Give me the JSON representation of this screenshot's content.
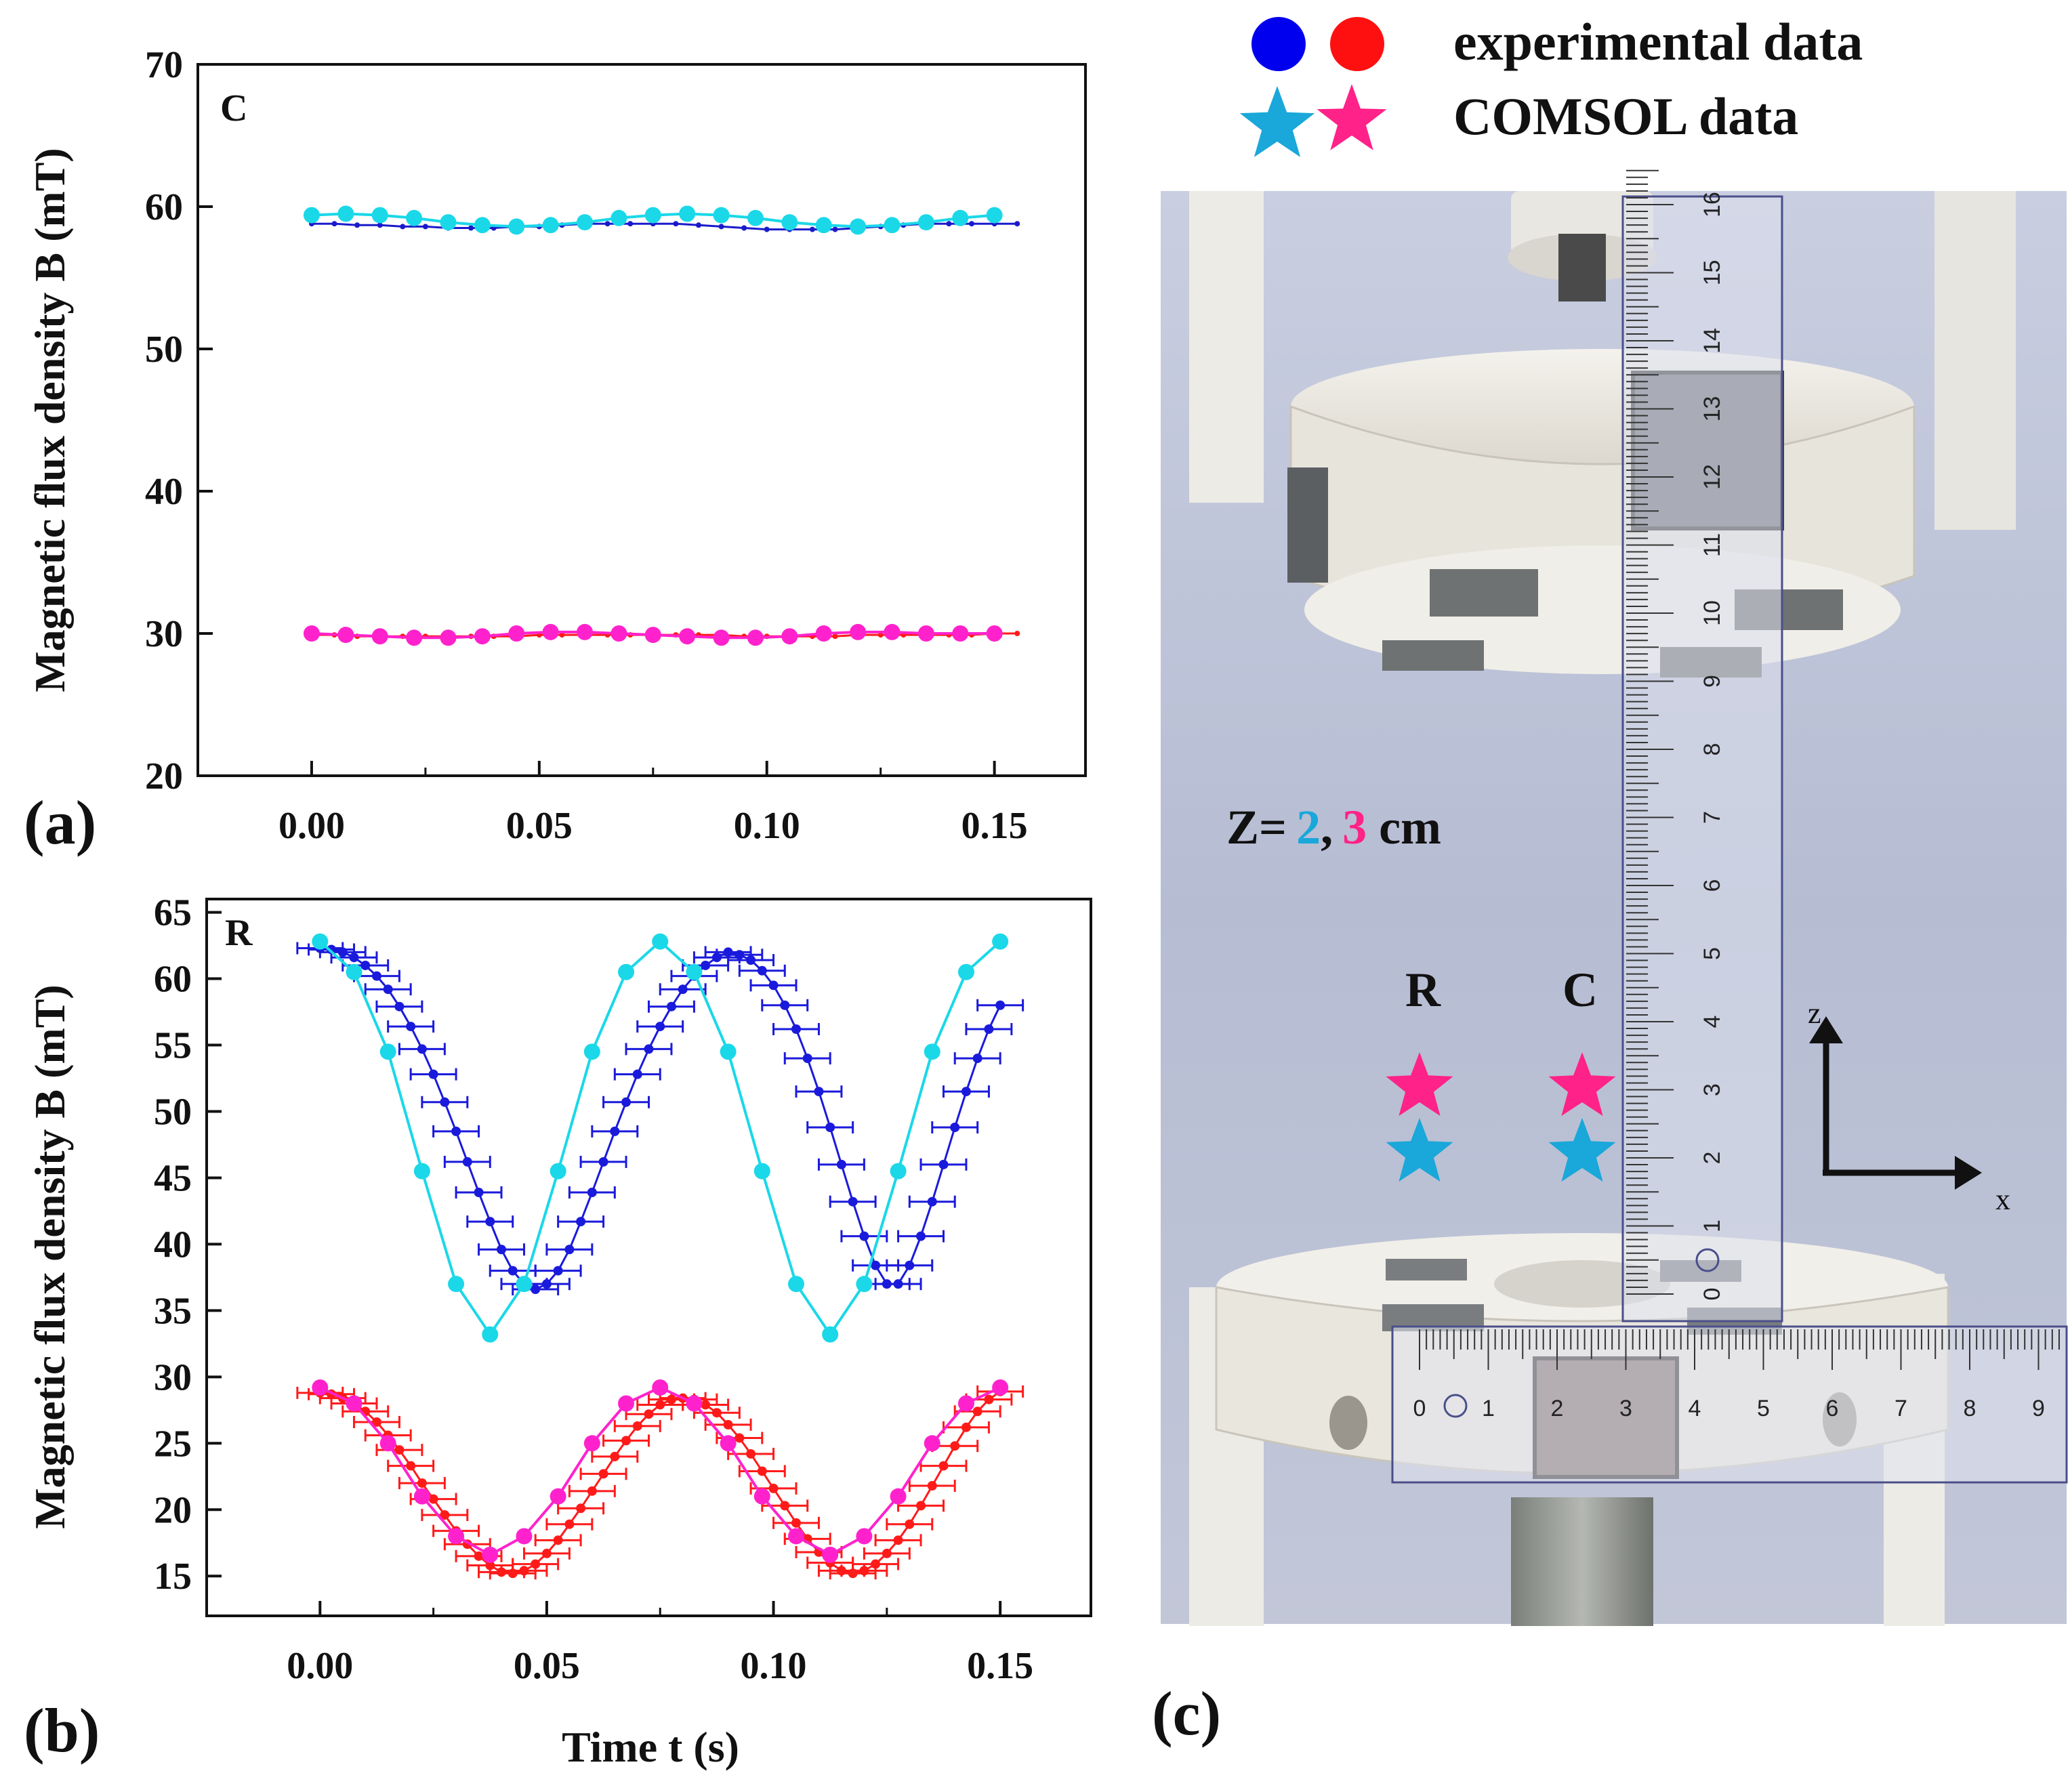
{
  "figure": {
    "panel_labels": {
      "a": "(a)",
      "b": "(b)",
      "c": "(c)"
    },
    "legend": {
      "experimental": "experimental data",
      "comsol": "COMSOL data",
      "colors": {
        "blue": "#0a0ae0",
        "red": "#ff1a1a",
        "cyan": "#1aa7d9",
        "magenta": "#ff2288"
      }
    },
    "photo": {
      "z_label": {
        "prefix": "Z=",
        "v1": "2",
        "sep": ",",
        "v2": "3",
        "unit": "cm"
      },
      "pos_R": "R",
      "pos_C": "C",
      "axis_z": "z",
      "axis_x": "x",
      "vertical_ruler": [
        "0",
        "1",
        "2",
        "3",
        "4",
        "5",
        "6",
        "7",
        "8",
        "9",
        "10",
        "11",
        "12",
        "13",
        "14",
        "15",
        "16"
      ],
      "horizontal_ruler": [
        "0",
        "1",
        "2",
        "3",
        "4",
        "5",
        "6",
        "7",
        "8",
        "9"
      ],
      "background_color": "#b8bfd4"
    }
  },
  "chart_data": [
    {
      "type": "line",
      "panel": "(a)",
      "corner_label": "C",
      "xlabel": "",
      "ylabel": "Magnetic flux density B (mT)",
      "xlim": [
        -0.025,
        0.17
      ],
      "ylim": [
        20,
        70
      ],
      "xticks": [
        "0.00",
        "0.05",
        "0.10",
        "0.15"
      ],
      "xtick_values": [
        0,
        0.05,
        0.1,
        0.15
      ],
      "yticks": [
        "20",
        "30",
        "40",
        "50",
        "60",
        "70"
      ],
      "ytick_values": [
        20,
        30,
        40,
        50,
        60,
        70
      ],
      "series": [
        {
          "name": "experimental z=2 cm",
          "color": "#1a1acc",
          "marker": "small-dot",
          "x": [
            0,
            0.005,
            0.01,
            0.015,
            0.02,
            0.025,
            0.03,
            0.035,
            0.04,
            0.045,
            0.05,
            0.055,
            0.06,
            0.065,
            0.07,
            0.075,
            0.08,
            0.085,
            0.09,
            0.095,
            0.1,
            0.105,
            0.11,
            0.115,
            0.12,
            0.125,
            0.13,
            0.135,
            0.14,
            0.145,
            0.15,
            0.155
          ],
          "y": [
            58.8,
            58.8,
            58.7,
            58.7,
            58.6,
            58.6,
            58.5,
            58.5,
            58.5,
            58.6,
            58.6,
            58.7,
            58.8,
            58.8,
            58.8,
            58.8,
            58.8,
            58.7,
            58.6,
            58.5,
            58.4,
            58.4,
            58.4,
            58.4,
            58.5,
            58.6,
            58.7,
            58.8,
            58.8,
            58.8,
            58.8,
            58.8
          ]
        },
        {
          "name": "COMSOL z=2 cm",
          "color": "#1ad8e8",
          "marker": "big-dot",
          "x": [
            0,
            0.0075,
            0.015,
            0.0225,
            0.03,
            0.0375,
            0.045,
            0.0525,
            0.06,
            0.0675,
            0.075,
            0.0825,
            0.09,
            0.0975,
            0.105,
            0.1125,
            0.12,
            0.1275,
            0.135,
            0.1425,
            0.15
          ],
          "y": [
            59.4,
            59.5,
            59.4,
            59.2,
            58.9,
            58.7,
            58.6,
            58.7,
            58.9,
            59.2,
            59.4,
            59.5,
            59.4,
            59.2,
            58.9,
            58.7,
            58.6,
            58.7,
            58.9,
            59.2,
            59.4
          ]
        },
        {
          "name": "experimental z=3 cm",
          "color": "#ff1a1a",
          "marker": "small-dot",
          "x": [
            0,
            0.005,
            0.01,
            0.015,
            0.02,
            0.025,
            0.03,
            0.035,
            0.04,
            0.045,
            0.05,
            0.055,
            0.06,
            0.065,
            0.07,
            0.075,
            0.08,
            0.085,
            0.09,
            0.095,
            0.1,
            0.105,
            0.11,
            0.115,
            0.12,
            0.125,
            0.13,
            0.135,
            0.14,
            0.145,
            0.15,
            0.155
          ],
          "y": [
            29.9,
            29.9,
            29.8,
            29.8,
            29.8,
            29.8,
            29.8,
            29.8,
            29.8,
            29.8,
            29.9,
            29.9,
            29.9,
            29.9,
            29.9,
            29.9,
            29.9,
            29.9,
            29.9,
            29.8,
            29.8,
            29.8,
            29.8,
            29.8,
            29.9,
            29.9,
            29.9,
            29.9,
            29.9,
            29.9,
            30.0,
            30.0
          ]
        },
        {
          "name": "COMSOL z=3 cm",
          "color": "#ff22cc",
          "marker": "big-dot",
          "x": [
            0,
            0.0075,
            0.015,
            0.0225,
            0.03,
            0.0375,
            0.045,
            0.0525,
            0.06,
            0.0675,
            0.075,
            0.0825,
            0.09,
            0.0975,
            0.105,
            0.1125,
            0.12,
            0.1275,
            0.135,
            0.1425,
            0.15
          ],
          "y": [
            30.0,
            29.9,
            29.8,
            29.7,
            29.7,
            29.8,
            30.0,
            30.1,
            30.1,
            30.0,
            29.9,
            29.8,
            29.7,
            29.7,
            29.8,
            30.0,
            30.1,
            30.1,
            30.0,
            30.0,
            30.0
          ]
        }
      ]
    },
    {
      "type": "line",
      "panel": "(b)",
      "corner_label": "R",
      "xlabel": "Time t (s)",
      "ylabel": "Magnetic flux density B (mT)",
      "xlim": [
        -0.025,
        0.17
      ],
      "ylim": [
        12,
        66
      ],
      "xticks": [
        "0.00",
        "0.05",
        "0.10",
        "0.15"
      ],
      "xtick_values": [
        0,
        0.05,
        0.1,
        0.15
      ],
      "yticks": [
        "15",
        "20",
        "25",
        "30",
        "35",
        "40",
        "45",
        "50",
        "55",
        "60",
        "65"
      ],
      "ytick_values": [
        15,
        20,
        25,
        30,
        35,
        40,
        45,
        50,
        55,
        60,
        65
      ],
      "series": [
        {
          "name": "experimental z=2 cm",
          "color": "#1a1adc",
          "marker": "dot-errorbar",
          "xerr": 0.005,
          "x": [
            0,
            0.0025,
            0.005,
            0.0075,
            0.01,
            0.0125,
            0.015,
            0.0175,
            0.02,
            0.0225,
            0.025,
            0.0275,
            0.03,
            0.0325,
            0.035,
            0.0375,
            0.04,
            0.0425,
            0.045,
            0.0475,
            0.05,
            0.0525,
            0.055,
            0.0575,
            0.06,
            0.0625,
            0.065,
            0.0675,
            0.07,
            0.0725,
            0.075,
            0.0775,
            0.08,
            0.0825,
            0.085,
            0.0875,
            0.09,
            0.0925,
            0.095,
            0.0975,
            0.1,
            0.1025,
            0.105,
            0.1075,
            0.11,
            0.1125,
            0.115,
            0.1175,
            0.12,
            0.1225,
            0.125,
            0.1275,
            0.13,
            0.1325,
            0.135,
            0.1375,
            0.14,
            0.1425,
            0.145,
            0.1475,
            0.15
          ],
          "y": [
            62.3,
            62.2,
            62.0,
            61.6,
            61.0,
            60.2,
            59.2,
            57.9,
            56.4,
            54.7,
            52.8,
            50.7,
            48.5,
            46.2,
            43.9,
            41.7,
            39.6,
            38.0,
            37.0,
            36.6,
            37.0,
            38.0,
            39.6,
            41.7,
            43.9,
            46.2,
            48.5,
            50.7,
            52.8,
            54.7,
            56.4,
            57.9,
            59.2,
            60.2,
            61.0,
            61.6,
            62.0,
            61.8,
            61.4,
            60.6,
            59.5,
            58.0,
            56.2,
            54.0,
            51.5,
            48.8,
            46.0,
            43.2,
            40.6,
            38.4,
            37.0,
            37.0,
            38.4,
            40.6,
            43.2,
            46.0,
            48.8,
            51.5,
            54.0,
            56.2,
            58.0
          ]
        },
        {
          "name": "COMSOL z=2 cm",
          "color": "#1ad8e8",
          "marker": "big-dot",
          "x": [
            0,
            0.0075,
            0.015,
            0.0225,
            0.03,
            0.0375,
            0.045,
            0.0525,
            0.06,
            0.0675,
            0.075,
            0.0825,
            0.09,
            0.0975,
            0.105,
            0.1125,
            0.12,
            0.1275,
            0.135,
            0.1425,
            0.15
          ],
          "y": [
            62.8,
            60.5,
            54.5,
            45.5,
            37.0,
            33.2,
            37.0,
            45.5,
            54.5,
            60.5,
            62.8,
            60.5,
            54.5,
            45.5,
            37.0,
            33.2,
            37.0,
            45.5,
            54.5,
            60.5,
            62.8
          ]
        },
        {
          "name": "experimental z=3 cm",
          "color": "#ff1a1a",
          "marker": "dot-errorbar",
          "xerr": 0.005,
          "x": [
            0,
            0.0025,
            0.005,
            0.0075,
            0.01,
            0.0125,
            0.015,
            0.0175,
            0.02,
            0.0225,
            0.025,
            0.0275,
            0.03,
            0.0325,
            0.035,
            0.0375,
            0.04,
            0.0425,
            0.045,
            0.0475,
            0.05,
            0.0525,
            0.055,
            0.0575,
            0.06,
            0.0625,
            0.065,
            0.0675,
            0.07,
            0.0725,
            0.075,
            0.0775,
            0.08,
            0.0825,
            0.085,
            0.0875,
            0.09,
            0.0925,
            0.095,
            0.0975,
            0.1,
            0.1025,
            0.105,
            0.1075,
            0.11,
            0.1125,
            0.115,
            0.1175,
            0.12,
            0.1225,
            0.125,
            0.1275,
            0.13,
            0.1325,
            0.135,
            0.1375,
            0.14,
            0.1425,
            0.145,
            0.1475,
            0.15
          ],
          "y": [
            28.8,
            28.7,
            28.4,
            28.0,
            27.4,
            26.6,
            25.6,
            24.5,
            23.3,
            22.0,
            20.8,
            19.6,
            18.4,
            17.4,
            16.5,
            15.8,
            15.3,
            15.2,
            15.4,
            15.9,
            16.7,
            17.7,
            18.9,
            20.1,
            21.4,
            22.7,
            24.0,
            25.2,
            26.3,
            27.2,
            27.9,
            28.3,
            28.4,
            28.3,
            27.9,
            27.3,
            26.4,
            25.4,
            24.2,
            22.9,
            21.6,
            20.3,
            19.0,
            17.8,
            16.8,
            16.0,
            15.4,
            15.2,
            15.4,
            15.9,
            16.7,
            17.7,
            18.9,
            20.3,
            21.8,
            23.3,
            24.8,
            26.2,
            27.4,
            28.3,
            28.9
          ]
        },
        {
          "name": "COMSOL z=3 cm",
          "color": "#ff22cc",
          "marker": "big-dot",
          "x": [
            0,
            0.0075,
            0.015,
            0.0225,
            0.03,
            0.0375,
            0.045,
            0.0525,
            0.06,
            0.0675,
            0.075,
            0.0825,
            0.09,
            0.0975,
            0.105,
            0.1125,
            0.12,
            0.1275,
            0.135,
            0.1425,
            0.15
          ],
          "y": [
            29.2,
            28.0,
            25.0,
            21.0,
            18.0,
            16.6,
            18.0,
            21.0,
            25.0,
            28.0,
            29.2,
            28.0,
            25.0,
            21.0,
            18.0,
            16.6,
            18.0,
            21.0,
            25.0,
            28.0,
            29.2
          ]
        }
      ]
    }
  ]
}
